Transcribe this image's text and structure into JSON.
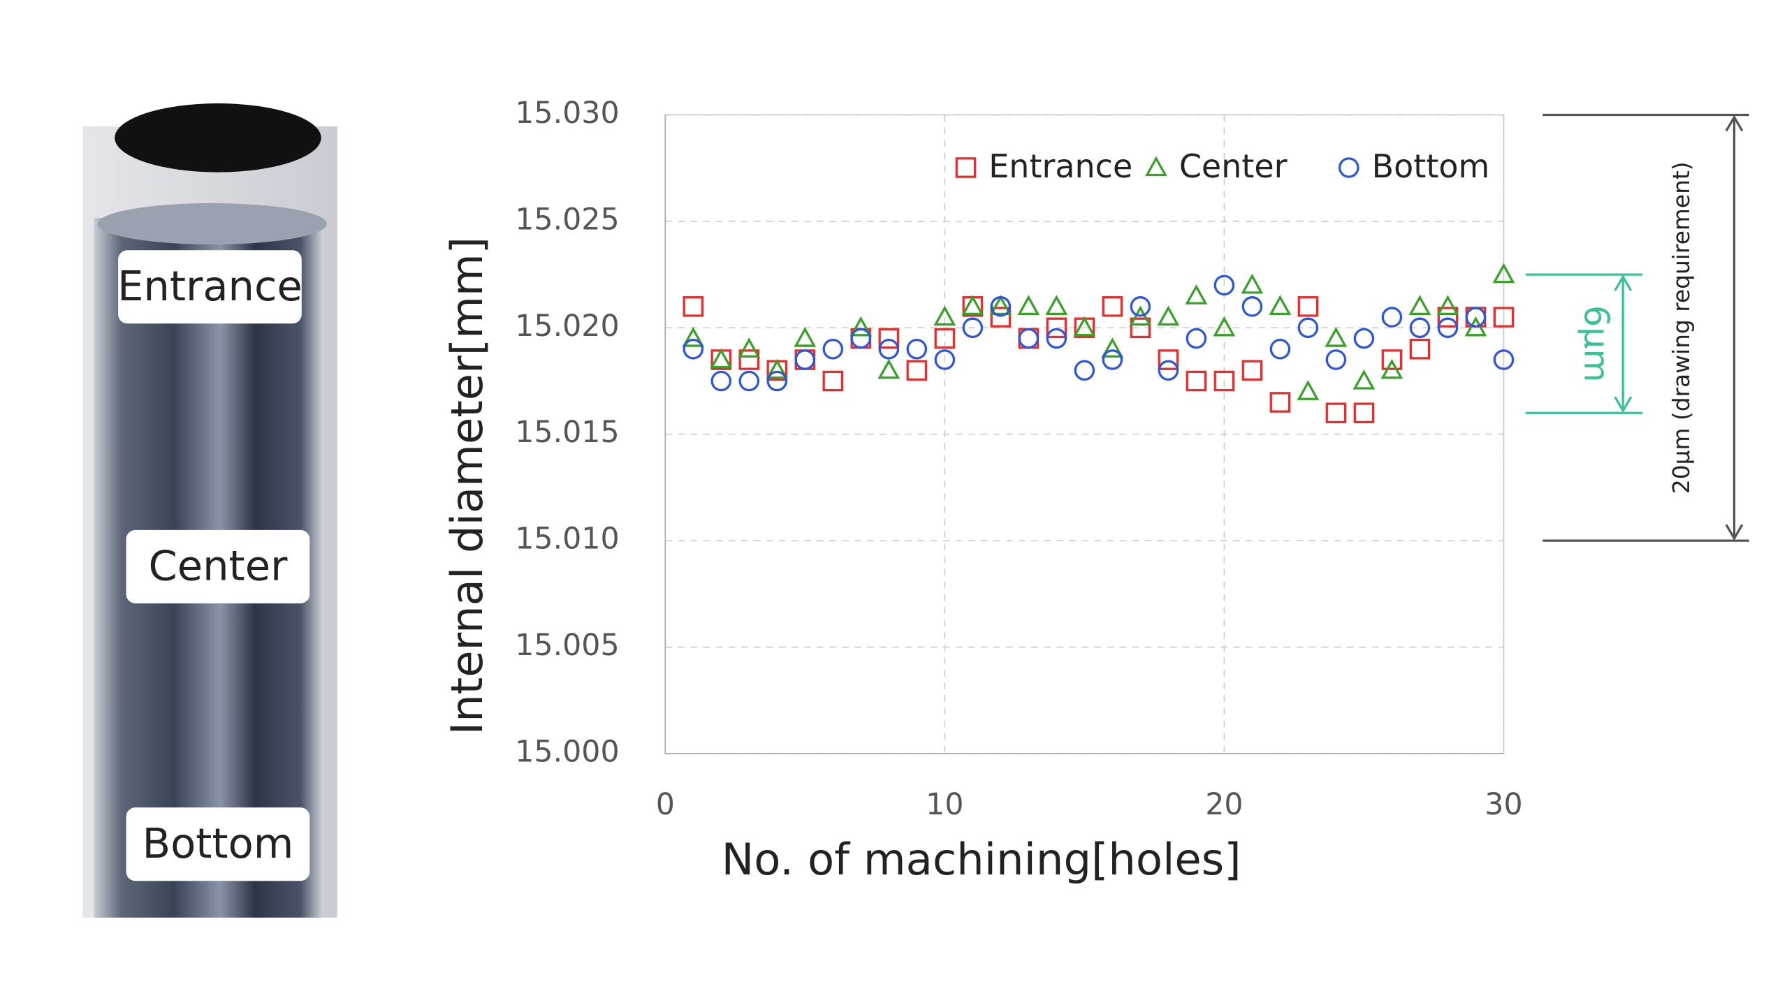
{
  "chart_data": {
    "type": "scatter",
    "xlabel": "No. of machining[holes]",
    "ylabel": "Internal diameter[mm]",
    "photo_labels": [
      "Entrance",
      "Center",
      "Bottom"
    ],
    "x": [
      1,
      2,
      3,
      4,
      5,
      6,
      7,
      8,
      9,
      10,
      11,
      12,
      13,
      14,
      15,
      16,
      17,
      18,
      19,
      20,
      21,
      22,
      23,
      24,
      25,
      26,
      27,
      28,
      29,
      30
    ],
    "series": [
      {
        "name": "Entrance",
        "color": "#e03030",
        "marker": "square",
        "values": [
          15.021,
          15.0185,
          15.0185,
          15.018,
          15.0185,
          15.0175,
          15.0195,
          15.0195,
          15.018,
          15.0195,
          15.021,
          15.0205,
          15.0195,
          15.02,
          15.02,
          15.021,
          15.02,
          15.0185,
          15.0175,
          15.0175,
          15.018,
          15.0165,
          15.021,
          15.016,
          15.016,
          15.0185,
          15.019,
          15.0205,
          15.0205,
          15.0205
        ]
      },
      {
        "name": "Center",
        "color": "#3aa02a",
        "marker": "triangle",
        "values": [
          15.0195,
          15.0185,
          15.019,
          15.018,
          15.0195,
          null,
          15.02,
          15.018,
          null,
          15.0205,
          15.021,
          15.021,
          15.021,
          15.021,
          15.02,
          15.019,
          15.0205,
          15.0205,
          15.0215,
          15.02,
          15.022,
          15.021,
          15.017,
          15.0195,
          15.0175,
          15.018,
          15.021,
          15.021,
          15.02,
          15.0225
        ]
      },
      {
        "name": "Bottom",
        "color": "#2f56d8",
        "marker": "circle",
        "values": [
          15.019,
          15.0175,
          15.0175,
          15.0175,
          15.0185,
          15.019,
          15.0195,
          15.019,
          15.019,
          15.0185,
          15.02,
          15.021,
          15.0195,
          15.0195,
          15.018,
          15.0185,
          15.021,
          15.018,
          15.0195,
          15.022,
          15.021,
          15.019,
          15.02,
          15.0185,
          15.0195,
          15.0205,
          15.02,
          15.02,
          15.0205,
          15.0185
        ]
      }
    ],
    "xlim": [
      0,
      30
    ],
    "xticks": [
      0,
      10,
      20,
      30
    ],
    "ylim": [
      15.0,
      15.03
    ],
    "yticks": [
      {
        "value": 15.0,
        "label": "15.000"
      },
      {
        "value": 15.005,
        "label": "15.005"
      },
      {
        "value": 15.01,
        "label": "15.010"
      },
      {
        "value": 15.015,
        "label": "15.015"
      },
      {
        "value": 15.02,
        "label": "15.020"
      },
      {
        "value": 15.025,
        "label": "15.025"
      },
      {
        "value": 15.03,
        "label": "15.030"
      }
    ],
    "grid": true,
    "legend": "upper right",
    "annotations": [
      {
        "text": "6μm",
        "from": 15.016,
        "to": 15.0225,
        "color": "#3cc09a"
      },
      {
        "text": "20μm (drawing requirement)",
        "from": 15.01,
        "to": 15.03,
        "color": "#555555"
      }
    ]
  }
}
